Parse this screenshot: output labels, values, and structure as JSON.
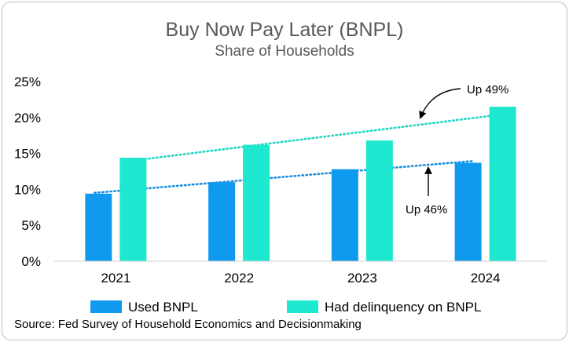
{
  "chart_data": {
    "type": "bar",
    "title": "Buy Now Pay Later (BNPL)",
    "subtitle": "Share of Households",
    "categories": [
      "2021",
      "2022",
      "2023",
      "2024"
    ],
    "series": [
      {
        "name": "Used BNPL",
        "values": [
          9.4,
          11.0,
          12.8,
          13.7
        ],
        "color": "#0f9aef",
        "trend_color": "#1a8fe0"
      },
      {
        "name": "Had delinquency on BNPL",
        "values": [
          14.4,
          16.2,
          16.8,
          21.5
        ],
        "color": "#1ee8cf",
        "trend_color": "#20d6c2"
      }
    ],
    "y_ticks": [
      "0%",
      "5%",
      "10%",
      "15%",
      "20%",
      "25%"
    ],
    "ylim": [
      0,
      25
    ],
    "grid": false,
    "legend_position": "bottom",
    "trendlines": "dotted linear",
    "annotations": [
      {
        "text": "Up 49%",
        "series": "Had delinquency on BNPL"
      },
      {
        "text": "Up 46%",
        "series": "Used BNPL"
      }
    ],
    "source": "Source: Fed Survey of Household Economics and Decisionmaking"
  }
}
